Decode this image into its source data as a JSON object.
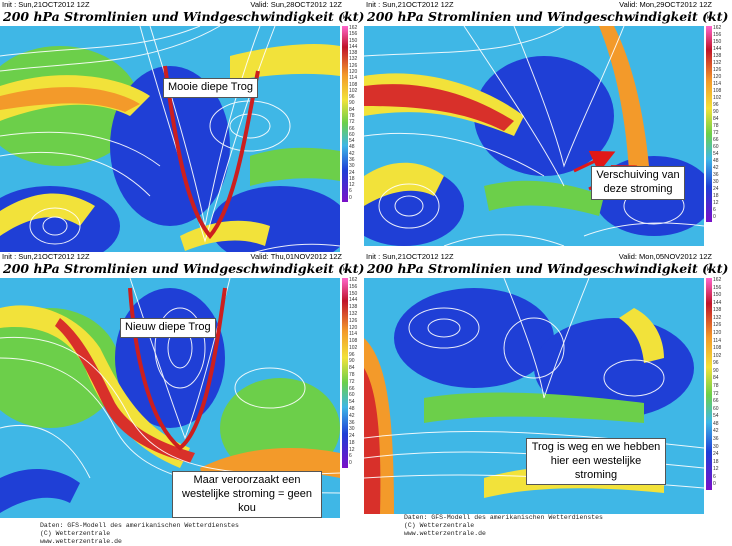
{
  "panels": [
    {
      "init": "Init : Sun,21OCT2012 12Z",
      "valid": "Valid: Sun,28OCT2012 12Z",
      "title": "200 hPa Stromlinien und Windgeschwindigkeit (kt)",
      "annotation": "Mooie diepe Trog"
    },
    {
      "init": "Init : Sun,21OCT2012 12Z",
      "valid": "Valid: Mon,29OCT2012 12Z",
      "title": "200 hPa Stromlinien und Windgeschwindigkeit (kt)",
      "annotation": "Verschuiving van deze stroming"
    },
    {
      "init": "Init : Sun,21OCT2012 12Z",
      "valid": "Valid: Thu,01NOV2012 12Z",
      "title": "200 hPa Stromlinien und Windgeschwindigkeit (kt)",
      "annotation": "Nieuw diepe Trog",
      "annotation2": "Maar veroorzaakt een westelijke stroming = geen kou"
    },
    {
      "init": "Init : Sun,21OCT2012 12Z",
      "valid": "Valid: Mon,05NOV2012 12Z",
      "title": "200 hPa Stromlinien und Windgeschwindigkeit (kt)",
      "annotation": "Trog is weg en we hebben hier een westelijke stroming"
    }
  ],
  "scale": {
    "unit": "kt",
    "ticks": [
      "162",
      "156",
      "150",
      "144",
      "138",
      "132",
      "126",
      "120",
      "114",
      "108",
      "102",
      "96",
      "90",
      "84",
      "78",
      "72",
      "66",
      "60",
      "54",
      "48",
      "42",
      "36",
      "30",
      "24",
      "18",
      "12",
      "6",
      "0"
    ]
  },
  "credit": {
    "left": "Daten: GFS-Modell des amerikanischen Wetterdienstes\n(C) Wetterzentrale\nwww.wetterzentrale.de",
    "right": "Daten: GFS-Modell des amerikanischen Wetterdienstes\n(C) Wetterzentrale\nwww.wetterzentrale.de"
  },
  "colors": {
    "slow": "#1f3fd6",
    "mid": "#3fb7e6",
    "green": "#6ccf4a",
    "yellow": "#f2e23a",
    "orange": "#f39a2a",
    "red": "#d8302a",
    "trough_line": "#cc1f1f",
    "arrow": "#e01818"
  }
}
